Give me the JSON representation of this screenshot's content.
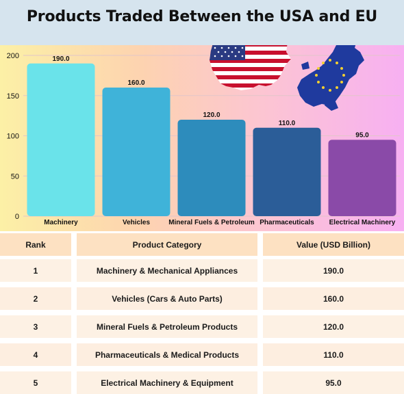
{
  "title": "Products Traded Between the USA and EU",
  "chart_data": {
    "type": "bar",
    "categories": [
      "Machinery",
      "Vehicles",
      "Mineral Fuels & Petroleum",
      "Pharmaceuticals",
      "Electrical Machinery"
    ],
    "values": [
      190.0,
      160.0,
      120.0,
      110.0,
      95.0
    ],
    "value_labels": [
      "190.0",
      "160.0",
      "120.0",
      "110.0",
      "95.0"
    ],
    "bar_colors": [
      "#6ae3ea",
      "#3fb3d9",
      "#2d8cbc",
      "#2b5d98",
      "#8a4aa8"
    ],
    "ylim": [
      0,
      200
    ],
    "yticks": [
      0,
      50,
      100,
      150,
      200
    ],
    "grid": true,
    "legend": "none",
    "decorations": [
      "usa-flag-map-icon",
      "eu-flag-map-icon"
    ]
  },
  "table": {
    "headers": [
      "Rank",
      "Product Category",
      "Value (USD Billion)"
    ],
    "rows": [
      [
        "1",
        "Machinery & Mechanical Appliances",
        "190.0"
      ],
      [
        "2",
        "Vehicles (Cars & Auto Parts)",
        "160.0"
      ],
      [
        "3",
        "Mineral Fuels & Petroleum Products",
        "120.0"
      ],
      [
        "4",
        "Pharmaceuticals & Medical Products",
        "110.0"
      ],
      [
        "5",
        "Electrical Machinery & Equipment",
        "95.0"
      ]
    ]
  }
}
